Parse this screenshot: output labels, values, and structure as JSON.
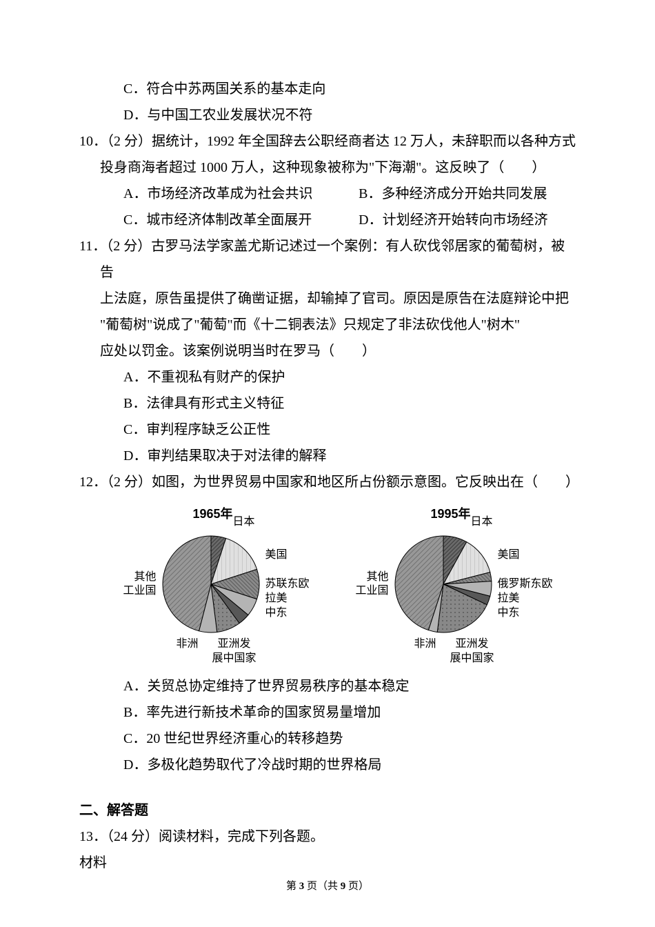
{
  "q9": {
    "optC": "C．符合中苏两国关系的基本走向",
    "optD": "D．与中国工农业发展状况不符"
  },
  "q10": {
    "line1": "10．（2 分）据统计，1992 年全国辞去公职经商者达 12 万人，未辞职而以各种方式",
    "line2": "投身商海者超过 1000 万人，这种现象被称为\"下海潮\"。这反映了（　　）",
    "optA": "A．市场经济改革成为社会共识",
    "optB": "B．多种经济成分开始共同发展",
    "optC": "C．城市经济体制改革全面展开",
    "optD": "D．计划经济开始转向市场经济"
  },
  "q11": {
    "line1": "11．（2 分）古罗马法学家盖尤斯记述过一个案例：有人砍伐邻居家的葡萄树，被告",
    "line2": "上法庭，原告虽提供了确凿证据，却输掉了官司。原因是原告在法庭辩论中把",
    "line3": "\"葡萄树\"说成了\"葡萄\"而《十二铜表法》只规定了非法砍伐他人\"树木\"",
    "line4": "应处以罚金。该案例说明当时在罗马（　　）",
    "optA": "A．不重视私有财产的保护",
    "optB": "B．法律具有形式主义特征",
    "optC": "C．审判程序缺乏公正性",
    "optD": "D．审判结果取决于对法律的解释"
  },
  "q12": {
    "line1": "12．（2 分）如图，为世界贸易中国家和地区所占份额示意图。它反映出在（　　）",
    "optA": "A．关贸总协定维持了世界贸易秩序的基本稳定",
    "optB": "B．率先进行新技术革命的国家贸易量增加",
    "optC": "C．20 世纪世界经济重心的转移趋势",
    "optD": "D．多极化趋势取代了冷战时期的世界格局"
  },
  "chart1965": {
    "year": "1965年",
    "type": "pie",
    "slices": [
      {
        "label": "日本",
        "value": 5,
        "color": "#7a7a7a",
        "pattern": "lines-dark"
      },
      {
        "label": "美国",
        "value": 15,
        "color": "#d8d8d8",
        "pattern": "light"
      },
      {
        "label": "苏联东欧",
        "value": 10,
        "color": "#606060",
        "pattern": "lines"
      },
      {
        "label": "拉美",
        "value": 6,
        "color": "#b4b4b4",
        "pattern": "solid"
      },
      {
        "label": "中东",
        "value": 4,
        "color": "#505050",
        "pattern": "dark"
      },
      {
        "label": "亚洲发展中国家",
        "value": 8,
        "color": "#787878",
        "pattern": "dots"
      },
      {
        "label": "非洲",
        "value": 6,
        "color": "#c8c8c8",
        "pattern": "solid"
      },
      {
        "label": "其他工业国",
        "value": 46,
        "color": "#909090",
        "pattern": "lines-med"
      }
    ],
    "labels_left": "其他\n工业国",
    "labels_right_top": "日本",
    "labels_right": "美国\n\n苏联东欧\n拉美\n中东",
    "labels_bottom_left": "非洲",
    "labels_bottom_right": "亚洲发\n展中国家"
  },
  "chart1995": {
    "year": "1995年",
    "type": "pie",
    "slices": [
      {
        "label": "日本",
        "value": 8,
        "color": "#7a7a7a",
        "pattern": "lines-dark"
      },
      {
        "label": "美国",
        "value": 13,
        "color": "#d8d8d8",
        "pattern": "light"
      },
      {
        "label": "俄罗斯东欧",
        "value": 3,
        "color": "#606060",
        "pattern": "lines"
      },
      {
        "label": "拉美",
        "value": 5,
        "color": "#b4b4b4",
        "pattern": "solid"
      },
      {
        "label": "中东",
        "value": 3,
        "color": "#505050",
        "pattern": "dark"
      },
      {
        "label": "亚洲发展中国家",
        "value": 20,
        "color": "#787878",
        "pattern": "dots"
      },
      {
        "label": "非洲",
        "value": 3,
        "color": "#c8c8c8",
        "pattern": "solid"
      },
      {
        "label": "其他工业国",
        "value": 45,
        "color": "#909090",
        "pattern": "lines-med"
      }
    ],
    "labels_left": "其他\n工业国",
    "labels_right_top": "日本",
    "labels_right": "美国\n\n俄罗斯东欧\n拉美\n中东",
    "labels_bottom_left": "非洲",
    "labels_bottom_right": "亚洲发\n展中国家"
  },
  "section2": {
    "heading": "二、解答题",
    "q13_line1": "13．（24 分）阅读材料，完成下列各题。",
    "q13_line2": "材料"
  },
  "footer": {
    "prefix": "第 ",
    "page": "3",
    "middle": " 页（共 ",
    "total": "9",
    "suffix": " 页）"
  },
  "pie_style": {
    "radius": 70,
    "stroke": "#000000",
    "stroke_width": 1,
    "leader_line_color": "#000000"
  }
}
